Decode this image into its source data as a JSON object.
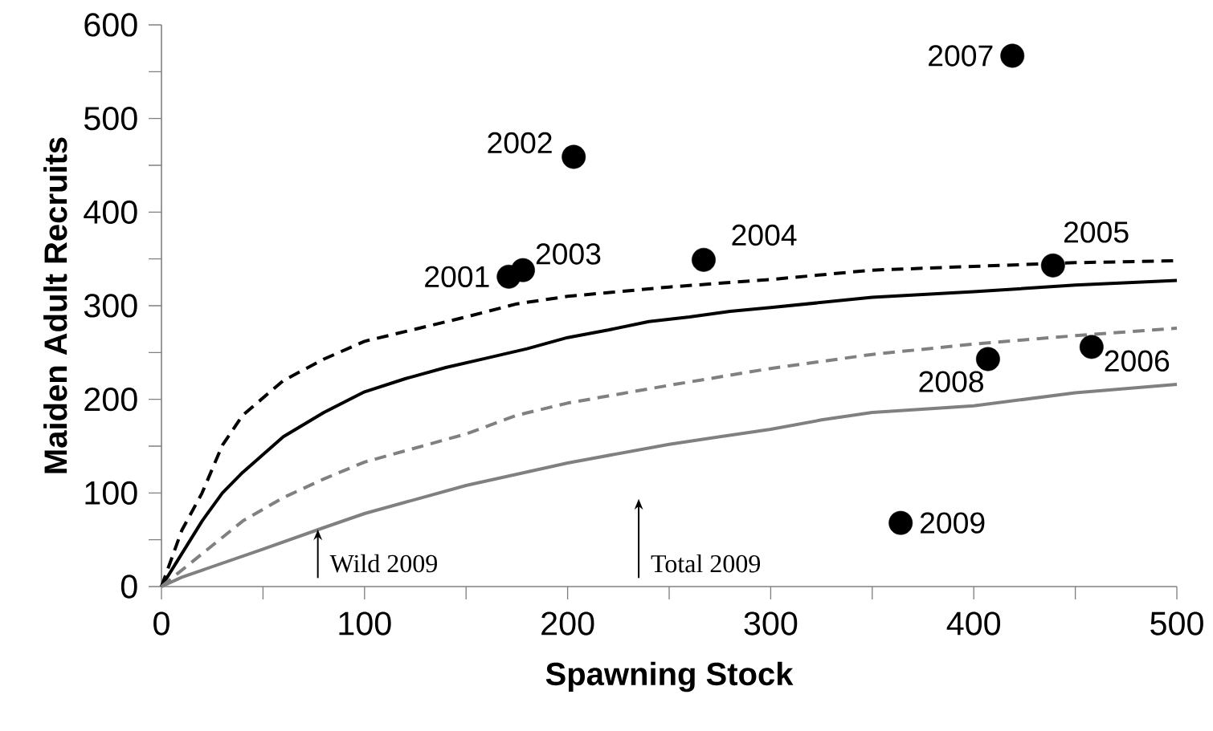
{
  "chart_data": {
    "type": "scatter",
    "xlabel": "Spawning Stock",
    "ylabel": "Maiden Adult Recruits",
    "xlim": [
      0,
      500
    ],
    "ylim": [
      0,
      600
    ],
    "xticks": [
      0,
      {
        "value": 50,
        "label": null
      },
      100,
      {
        "value": 150,
        "label": null
      },
      200,
      {
        "value": 250,
        "label": null
      },
      300,
      {
        "value": 350,
        "label": null
      },
      400,
      {
        "value": 450,
        "label": null
      },
      500
    ],
    "yticks": [
      0,
      {
        "value": 50,
        "label": null
      },
      100,
      {
        "value": 150,
        "label": null
      },
      200,
      {
        "value": 250,
        "label": null
      },
      300,
      {
        "value": 350,
        "label": null
      },
      400,
      {
        "value": 450,
        "label": null
      },
      500,
      {
        "value": 550,
        "label": null
      },
      600
    ],
    "grid": false,
    "series": [
      {
        "type": "line",
        "color": "#000000",
        "line_style": "dashed",
        "marker": "none",
        "x": [
          0,
          5,
          10,
          20,
          30,
          40,
          60,
          80,
          100,
          150,
          175,
          200,
          250,
          300,
          350,
          400,
          450,
          500
        ],
        "values": [
          0,
          30,
          60,
          100,
          151,
          183,
          220,
          243,
          262,
          288,
          302,
          310,
          320,
          328,
          338,
          342,
          346,
          348
        ]
      },
      {
        "type": "line",
        "color": "#000000",
        "line_style": "solid",
        "marker": "none",
        "x": [
          0,
          10,
          20,
          30,
          40,
          60,
          80,
          100,
          120,
          140,
          160,
          180,
          200,
          220,
          240,
          260,
          280,
          300,
          350,
          400,
          450,
          500
        ],
        "values": [
          0,
          35,
          70,
          100,
          122,
          160,
          186,
          208,
          222,
          234,
          244,
          254,
          266,
          274,
          283,
          288,
          294,
          298,
          309,
          315,
          322,
          327
        ]
      },
      {
        "type": "line",
        "color": "#808080",
        "line_style": "dashed",
        "marker": "none",
        "x": [
          0,
          20,
          40,
          60,
          80,
          100,
          150,
          175,
          200,
          250,
          300,
          350,
          400,
          450,
          500
        ],
        "values": [
          0,
          35,
          70,
          95,
          115,
          133,
          163,
          183,
          196,
          215,
          233,
          248,
          259,
          268,
          276
        ]
      },
      {
        "type": "line",
        "color": "#808080",
        "line_style": "solid",
        "marker": "none",
        "x": [
          0,
          10,
          50,
          80,
          100,
          150,
          175,
          200,
          250,
          275,
          300,
          325,
          350,
          400,
          450,
          500
        ],
        "values": [
          0,
          10,
          40,
          63,
          78,
          108,
          120,
          132,
          152,
          160,
          168,
          178,
          186,
          193,
          207,
          216
        ]
      },
      {
        "type": "scatter",
        "color": "#000000",
        "marker": "circle",
        "x": [
          171,
          178,
          203,
          267,
          364,
          407,
          419,
          439,
          458
        ],
        "values": [
          331,
          338,
          459,
          349,
          68,
          243,
          567,
          343,
          256
        ]
      }
    ],
    "annotations": [
      {
        "text": "2001",
        "x": 171,
        "y": 331
      },
      {
        "text": "2002",
        "x": 203,
        "y": 459
      },
      {
        "text": "2003",
        "x": 178,
        "y": 338
      },
      {
        "text": "2004",
        "x": 267,
        "y": 349
      },
      {
        "text": "2005",
        "x": 439,
        "y": 343
      },
      {
        "text": "2006",
        "x": 458,
        "y": 256
      },
      {
        "text": "2007",
        "x": 419,
        "y": 567
      },
      {
        "text": "2008",
        "x": 407,
        "y": 243
      },
      {
        "text": "2009",
        "x": 364,
        "y": 68
      },
      {
        "text": "Wild 2009",
        "x": 77,
        "y": 61
      }
    ],
    "ref_lines": [
      {
        "axis": "x",
        "value": 235,
        "label": "Total 2009"
      }
    ]
  }
}
